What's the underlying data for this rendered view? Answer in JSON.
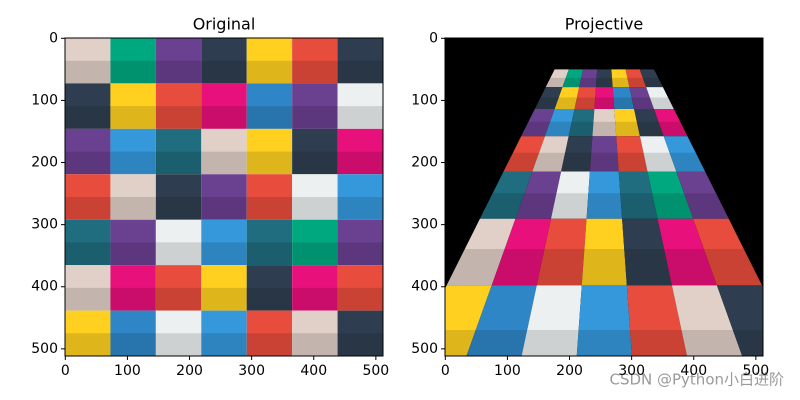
{
  "chart_data": [
    {
      "type": "image",
      "title": "Original",
      "projection": "none",
      "tiles": [
        [
          "#e0d0c8",
          "#00a880",
          "#6a4090",
          "#2e3e50",
          "#ffd020",
          "#e84c3c",
          "#2e3e50"
        ],
        [
          "#2e3e50",
          "#ffd020",
          "#e84c3c",
          "#e8107a",
          "#2f86c6",
          "#6a4090",
          "#ecf0f1"
        ],
        [
          "#6a4090",
          "#3498db",
          "#1f6d7e",
          "#e0d0c8",
          "#ffd020",
          "#2e3e50",
          "#e8107a"
        ],
        [
          "#e84c3c",
          "#e0d0c8",
          "#2e3e50",
          "#6a4090",
          "#e84c3c",
          "#ecf0f1",
          "#3498db"
        ],
        [
          "#1f6d7e",
          "#6a4090",
          "#ecf0f1",
          "#3498db",
          "#1f6d7e",
          "#00a880",
          "#6a4090"
        ],
        [
          "#e0d0c8",
          "#e8107a",
          "#e84c3c",
          "#ffd020",
          "#2e3e50",
          "#e8107a",
          "#e84c3c"
        ],
        [
          "#ffd020",
          "#2f86c6",
          "#ecf0f1",
          "#3498db",
          "#e84c3c",
          "#e0d0c8",
          "#2e3e50"
        ]
      ],
      "xlim": [
        -0.5,
        511.5
      ],
      "ylim": [
        511.5,
        -0.5
      ],
      "xticks": [
        0,
        100,
        200,
        300,
        400,
        500
      ],
      "yticks": [
        0,
        100,
        200,
        300,
        400,
        500
      ]
    },
    {
      "type": "image",
      "title": "Projective",
      "projection": "perspective",
      "background": "#000000",
      "tiles": [
        [
          "#e0d0c8",
          "#00a880",
          "#6a4090",
          "#2e3e50",
          "#ffd020",
          "#e84c3c",
          "#2e3e50"
        ],
        [
          "#2e3e50",
          "#ffd020",
          "#e84c3c",
          "#e8107a",
          "#2f86c6",
          "#6a4090",
          "#ecf0f1"
        ],
        [
          "#6a4090",
          "#3498db",
          "#1f6d7e",
          "#e0d0c8",
          "#ffd020",
          "#2e3e50",
          "#e8107a"
        ],
        [
          "#e84c3c",
          "#e0d0c8",
          "#2e3e50",
          "#6a4090",
          "#e84c3c",
          "#ecf0f1",
          "#3498db"
        ],
        [
          "#1f6d7e",
          "#6a4090",
          "#ecf0f1",
          "#3498db",
          "#1f6d7e",
          "#00a880",
          "#6a4090"
        ],
        [
          "#e0d0c8",
          "#e8107a",
          "#e84c3c",
          "#ffd020",
          "#2e3e50",
          "#e8107a",
          "#e84c3c"
        ],
        [
          "#ffd020",
          "#2f86c6",
          "#ecf0f1",
          "#3498db",
          "#e84c3c",
          "#e0d0c8",
          "#2e3e50"
        ]
      ],
      "xlim": [
        -0.5,
        511.5
      ],
      "ylim": [
        511.5,
        -0.5
      ],
      "xticks": [
        0,
        100,
        200,
        300,
        400,
        500
      ],
      "yticks": [
        0,
        100,
        200,
        300,
        400,
        500
      ]
    }
  ],
  "watermark": "CSDN @Python小白进阶"
}
